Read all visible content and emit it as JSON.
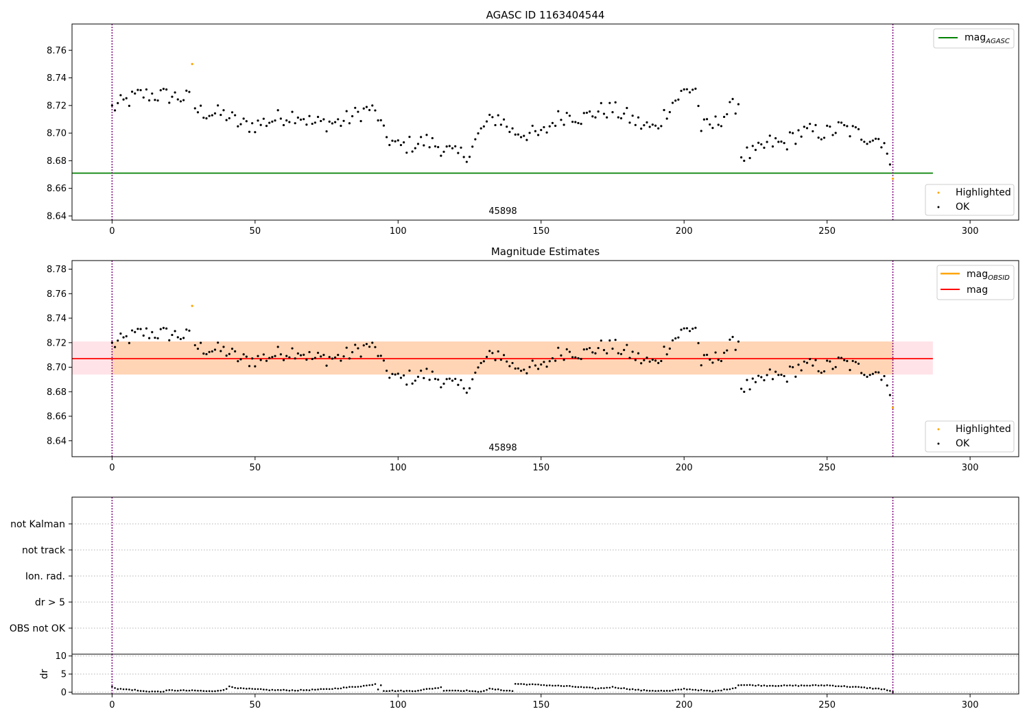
{
  "chart_data": [
    {
      "type": "scatter",
      "title": "AGASC ID 1163404544",
      "xlim": [
        -14,
        317
      ],
      "ylim": [
        8.637,
        8.779
      ],
      "xticks": [
        "0",
        "50",
        "100",
        "150",
        "200",
        "250",
        "300"
      ],
      "yticks": [
        "8.64",
        "8.66",
        "8.68",
        "8.70",
        "8.72",
        "8.74",
        "8.76"
      ],
      "obsid_label": "45898",
      "obsid_boundaries": [
        0,
        273
      ],
      "mag_agasc": 8.671,
      "line_x_range": [
        -14,
        287
      ],
      "legend_top": {
        "agasc_main": "mag",
        "agasc_sub": "AGASC"
      },
      "legend_bottom": {
        "highlighted": "Highlighted",
        "ok": "OK"
      },
      "highlighted_points": [
        [
          28,
          8.75
        ],
        [
          273,
          8.667
        ]
      ],
      "ok_curve": [
        [
          0,
          8.718
        ],
        [
          10,
          8.728
        ],
        [
          20,
          8.727
        ],
        [
          27,
          8.725
        ],
        [
          30,
          8.716
        ],
        [
          40,
          8.713
        ],
        [
          45,
          8.706
        ],
        [
          50,
          8.706
        ],
        [
          60,
          8.712
        ],
        [
          65,
          8.714
        ],
        [
          70,
          8.707
        ],
        [
          80,
          8.708
        ],
        [
          90,
          8.718
        ],
        [
          93,
          8.712
        ],
        [
          95,
          8.699
        ],
        [
          100,
          8.69
        ],
        [
          110,
          8.694
        ],
        [
          115,
          8.69
        ],
        [
          120,
          8.684
        ],
        [
          125,
          8.686
        ],
        [
          130,
          8.705
        ],
        [
          135,
          8.712
        ],
        [
          140,
          8.701
        ],
        [
          145,
          8.7
        ],
        [
          150,
          8.698
        ],
        [
          155,
          8.71
        ],
        [
          160,
          8.714
        ],
        [
          165,
          8.711
        ],
        [
          170,
          8.716
        ],
        [
          175,
          8.717
        ],
        [
          180,
          8.712
        ],
        [
          185,
          8.706
        ],
        [
          190,
          8.703
        ],
        [
          195,
          8.72
        ],
        [
          200,
          8.73
        ],
        [
          204,
          8.733
        ],
        [
          206,
          8.704
        ],
        [
          210,
          8.705
        ],
        [
          215,
          8.715
        ],
        [
          219,
          8.722
        ],
        [
          220,
          8.684
        ],
        [
          225,
          8.685
        ],
        [
          230,
          8.693
        ],
        [
          235,
          8.692
        ],
        [
          240,
          8.7
        ],
        [
          245,
          8.701
        ],
        [
          250,
          8.7
        ],
        [
          255,
          8.704
        ],
        [
          260,
          8.7
        ],
        [
          265,
          8.697
        ],
        [
          270,
          8.695
        ],
        [
          272,
          8.672
        ]
      ]
    },
    {
      "type": "scatter",
      "title": "Magnitude Estimates",
      "xlim": [
        -14,
        317
      ],
      "ylim": [
        8.627,
        8.787
      ],
      "xticks": [
        "0",
        "50",
        "100",
        "150",
        "200",
        "250",
        "300"
      ],
      "yticks": [
        "8.64",
        "8.66",
        "8.68",
        "8.70",
        "8.72",
        "8.74",
        "8.76",
        "8.78"
      ],
      "obsid_label": "45898",
      "obsid_boundaries": [
        0,
        273
      ],
      "mag": 8.707,
      "mag_band": [
        8.694,
        8.721
      ],
      "mag_obsid_band": [
        8.694,
        8.721
      ],
      "line_x_range": [
        -14,
        287
      ],
      "legend_top": {
        "obsid_main": "mag",
        "obsid_sub": "OBSID",
        "mag": "mag"
      },
      "legend_bottom": {
        "highlighted": "Highlighted",
        "ok": "OK"
      },
      "highlighted_points": [
        [
          28,
          8.75
        ],
        [
          273,
          8.667
        ]
      ]
    },
    {
      "type": "scatter",
      "title": "",
      "xlim": [
        -14,
        317
      ],
      "flag_labels": [
        "not Kalman",
        "not track",
        "Ion. rad.",
        "dr > 5",
        "OBS not OK"
      ],
      "obsid_boundaries": [
        0,
        273
      ]
    },
    {
      "type": "scatter",
      "title": "",
      "ylabel": "dr",
      "xlim": [
        -14,
        317
      ],
      "ylim": [
        -0.5,
        10.5
      ],
      "xticks": [
        "0",
        "50",
        "100",
        "150",
        "200",
        "250",
        "300"
      ],
      "yticks": [
        "0",
        "5",
        "10"
      ],
      "obsid_boundaries": [
        0,
        273
      ],
      "dr_curve": [
        [
          0,
          1.6
        ],
        [
          2,
          0.9
        ],
        [
          8,
          0.6
        ],
        [
          10,
          0.3
        ],
        [
          17,
          0.1
        ],
        [
          20,
          0.5
        ],
        [
          30,
          0.4
        ],
        [
          35,
          0.2
        ],
        [
          40,
          0.8
        ],
        [
          41,
          1.6
        ],
        [
          45,
          1.0
        ],
        [
          55,
          0.6
        ],
        [
          65,
          0.5
        ],
        [
          75,
          0.8
        ],
        [
          85,
          1.5
        ],
        [
          90,
          1.9
        ],
        [
          92,
          2.3
        ],
        [
          93,
          0.8
        ],
        [
          94,
          2.0
        ],
        [
          95,
          0.4
        ],
        [
          105,
          0.3
        ],
        [
          110,
          0.8
        ],
        [
          115,
          1.3
        ],
        [
          116,
          0.5
        ],
        [
          125,
          0.4
        ],
        [
          128,
          0.0
        ],
        [
          132,
          0.9
        ],
        [
          140,
          0.3
        ],
        [
          141,
          2.3
        ],
        [
          150,
          2.0
        ],
        [
          160,
          1.6
        ],
        [
          170,
          1.0
        ],
        [
          175,
          1.4
        ],
        [
          185,
          0.5
        ],
        [
          195,
          0.3
        ],
        [
          200,
          0.9
        ],
        [
          205,
          0.6
        ],
        [
          210,
          0.2
        ],
        [
          215,
          0.8
        ],
        [
          218,
          1.2
        ],
        [
          219,
          2.0
        ],
        [
          230,
          1.8
        ],
        [
          240,
          1.8
        ],
        [
          250,
          1.9
        ],
        [
          262,
          1.3
        ],
        [
          270,
          0.8
        ],
        [
          273,
          0.0
        ]
      ]
    }
  ]
}
